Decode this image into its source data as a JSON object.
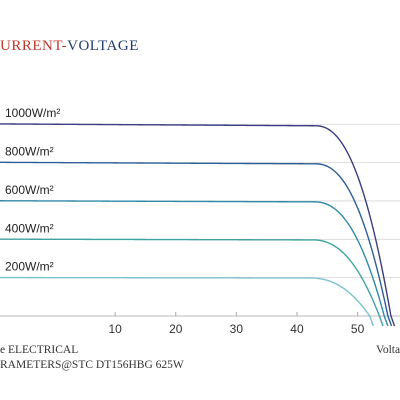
{
  "header": {
    "title_part1": "URRENT-",
    "title_part2": "VOLTAGE"
  },
  "chart_data": {
    "type": "line",
    "title": "URRENT-VOLTAGE",
    "xlabel": "Volta",
    "ylabel": "",
    "xlim": [
      -9,
      57
    ],
    "ylim": [
      0,
      1.0
    ],
    "x_ticks": [
      10,
      20,
      30,
      40,
      50
    ],
    "grid": true,
    "series": [
      {
        "name": "1000W/m²",
        "isc": 0.94,
        "voc": 55.5,
        "knee": 43.0,
        "color": "#3b3c82"
      },
      {
        "name": "800W/m²",
        "isc": 0.752,
        "voc": 55.0,
        "knee": 43.0,
        "color": "#2d5f97"
      },
      {
        "name": "600W/m²",
        "isc": 0.564,
        "voc": 54.4,
        "knee": 42.8,
        "color": "#2f8aa8"
      },
      {
        "name": "400W/m²",
        "isc": 0.376,
        "voc": 53.6,
        "knee": 42.5,
        "color": "#3fa39f"
      },
      {
        "name": "200W/m²",
        "isc": 0.188,
        "voc": 52.0,
        "knee": 42.0,
        "color": "#7cc2cc"
      }
    ]
  },
  "caption": {
    "line1": "e ELECTRICAL",
    "line2": "RAMETERS@STC DT156HBG 625W"
  },
  "xlabel_text": "Volta"
}
